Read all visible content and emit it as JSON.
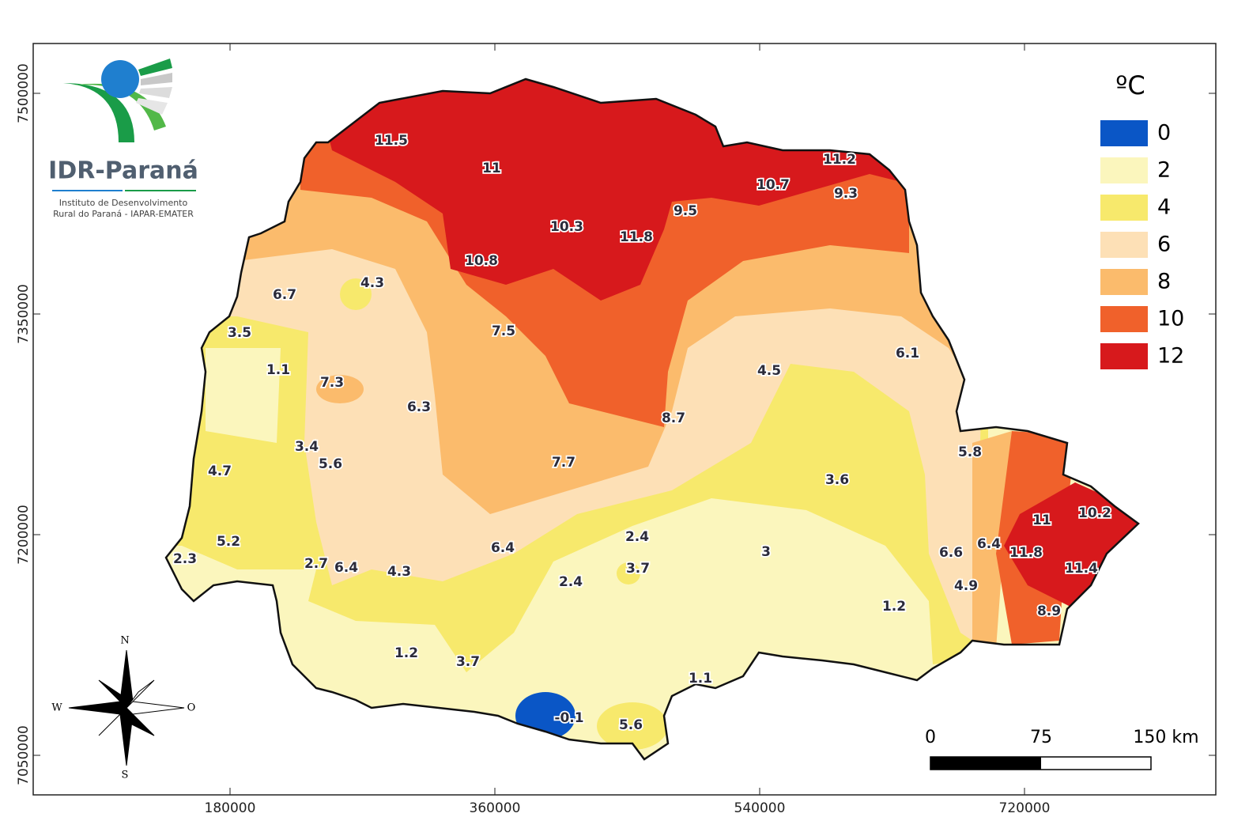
{
  "logo": {
    "name": "IDR-Paraná",
    "subtitle_lines": [
      "Instituto de Desenvolvimento",
      "Rural do Paraná - IAPAR-EMATER"
    ]
  },
  "map": {
    "xticks": [
      180000,
      360000,
      540000,
      720000
    ],
    "yticks": [
      7500000,
      7350000,
      7200000,
      7050000
    ],
    "station_values": [
      11.5,
      11,
      11.2,
      10.7,
      9.3,
      9.5,
      10.3,
      11.8,
      10.8,
      4.3,
      6.7,
      3.5,
      7.5,
      6.1,
      1.1,
      4.5,
      7.3,
      6.3,
      8.7,
      3.4,
      5.6,
      7.7,
      5.8,
      4.7,
      3.6,
      11,
      10.2,
      5.2,
      2.4,
      6.4,
      3,
      6.6,
      6.4,
      11.8,
      2.3,
      2.7,
      6.4,
      4.3,
      3.7,
      11.4,
      2.4,
      4.9,
      1.2,
      8.9,
      1.2,
      3.7,
      1.1,
      -0.1,
      5.6
    ]
  },
  "legend": {
    "title": "ºC",
    "items": [
      {
        "value": 0,
        "color": "#0a56c6"
      },
      {
        "value": 2,
        "color": "#fbf6bd"
      },
      {
        "value": 4,
        "color": "#f7e96c"
      },
      {
        "value": 6,
        "color": "#fde0b6"
      },
      {
        "value": 8,
        "color": "#fbbb6c"
      },
      {
        "value": 10,
        "color": "#f0612b"
      },
      {
        "value": 12,
        "color": "#d7191c"
      }
    ]
  },
  "scale_bar": {
    "labels": [
      "0",
      "75",
      "150 km"
    ]
  },
  "compass": {
    "north": "N",
    "south": "S",
    "west": "W",
    "east": "O"
  }
}
